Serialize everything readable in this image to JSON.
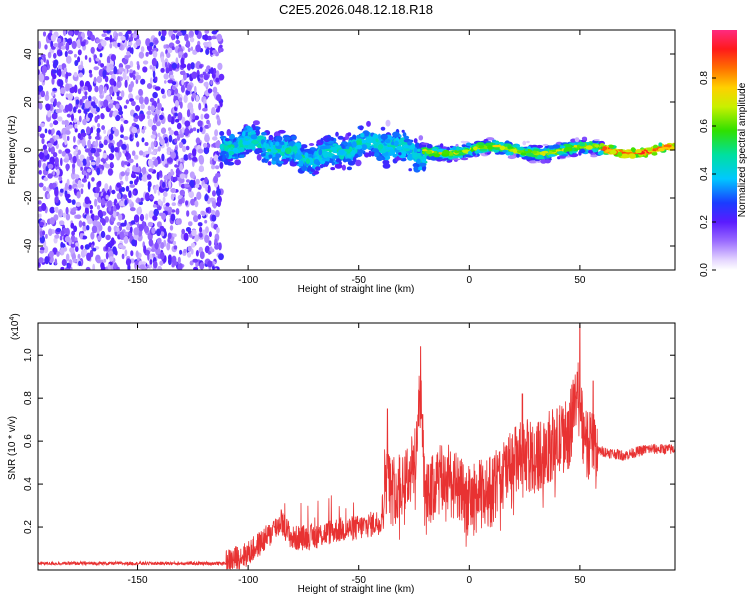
{
  "title": "C2E5.2026.048.12.18.R18",
  "chart_data": [
    {
      "type": "heatmap",
      "xlabel": "Height of straight line (km)",
      "ylabel": "Frequency (Hz)",
      "xlim": [
        -195,
        93
      ],
      "ylim": [
        -50,
        50
      ],
      "xticks": [
        -150,
        -100,
        -50,
        0,
        50
      ],
      "yticks": [
        -40,
        -20,
        0,
        20,
        40
      ],
      "colorbar": {
        "label": "Normalized spectral amplitude",
        "range": [
          0,
          1
        ],
        "ticks": [
          0.0,
          0.2,
          0.4,
          0.6,
          0.8
        ]
      },
      "regions": [
        {
          "x_range": [
            -195,
            -112
          ],
          "freq_range": [
            -50,
            50
          ],
          "amplitude": "low (0.0–0.2)",
          "pattern": "broadband noise"
        },
        {
          "x_range": [
            -112,
            -20
          ],
          "freq_range": [
            -15,
            15
          ],
          "amplitude": "0.1–0.5",
          "pattern": "band around 0 Hz"
        },
        {
          "x_range": [
            -20,
            93
          ],
          "freq_range": [
            -5,
            5
          ],
          "amplitude": "0.4–1.0",
          "pattern": "narrow band around 0 Hz"
        }
      ]
    },
    {
      "type": "line",
      "xlabel": "Height of straight line (km)",
      "ylabel": "SNR (10 * v/v)",
      "y_multiplier": "(x10",
      "y_multiplier_exp": "4",
      "y_multiplier_close": ")",
      "xlim": [
        -195,
        93
      ],
      "ylim": [
        0,
        1.15
      ],
      "xticks": [
        -150,
        -100,
        -50,
        0,
        50
      ],
      "yticks": [
        0.2,
        0.4,
        0.6,
        0.8,
        1.0
      ],
      "series": [
        {
          "color": "#e83232",
          "x": [
            -195,
            -110,
            -100,
            -90,
            -85,
            -80,
            -70,
            -60,
            -50,
            -40,
            -38,
            -35,
            -30,
            -25,
            -22,
            -20,
            -15,
            -10,
            -5,
            0,
            5,
            10,
            15,
            20,
            25,
            30,
            35,
            40,
            45,
            50,
            52,
            55,
            58,
            60,
            70,
            80,
            93
          ],
          "y": [
            0.03,
            0.03,
            0.07,
            0.16,
            0.22,
            0.14,
            0.15,
            0.18,
            0.19,
            0.22,
            0.42,
            0.35,
            0.4,
            0.46,
            0.8,
            0.3,
            0.38,
            0.42,
            0.35,
            0.3,
            0.33,
            0.35,
            0.42,
            0.48,
            0.52,
            0.5,
            0.55,
            0.58,
            0.62,
            0.85,
            0.55,
            0.58,
            0.55,
            0.55,
            0.53,
            0.56,
            0.56
          ],
          "spikes": [
            {
              "x": -85,
              "y": 0.28
            },
            {
              "x": -37,
              "y": 0.75
            },
            {
              "x": -22,
              "y": 1.04
            },
            {
              "x": 24,
              "y": 0.82
            },
            {
              "x": 50,
              "y": 1.14
            },
            {
              "x": 56,
              "y": 0.88
            }
          ]
        }
      ]
    }
  ]
}
